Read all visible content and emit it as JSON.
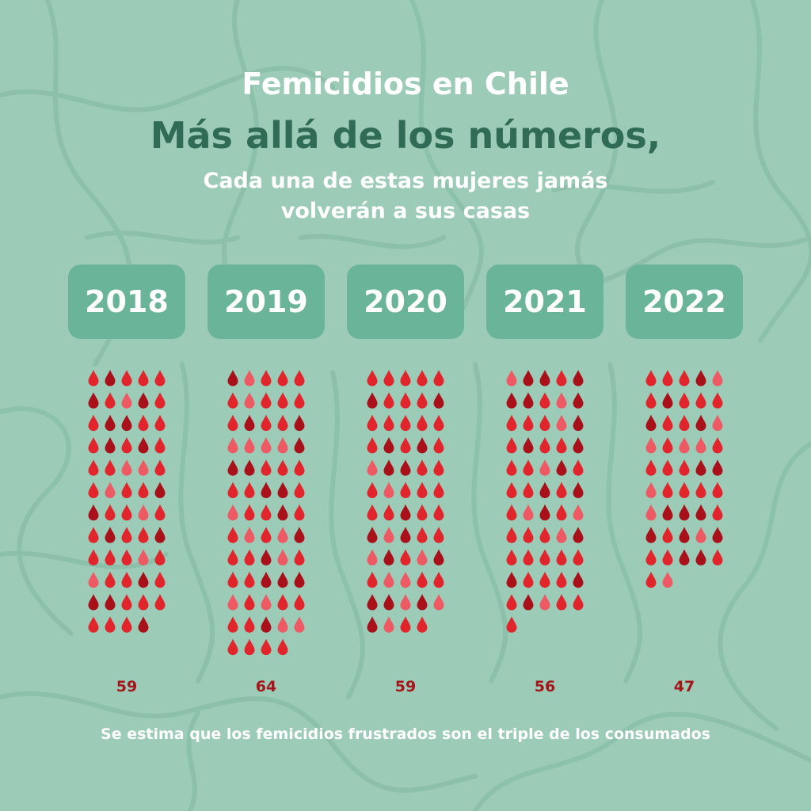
{
  "title": "Femicidios en Chile",
  "headline": "Más allá de los números,",
  "subtitle": "Cada una de estas mujeres jamás volverán a sus casas",
  "footnote": "Se estima que los femicidios frustrados son el triple de los consumados",
  "colors": {
    "background": "#9ccbb8",
    "year_box": "#6ab59a",
    "headline": "#2f6b55",
    "count": "#a4161a",
    "drop_shades": [
      "#e0262c",
      "#a8101a",
      "#ee5a64"
    ]
  },
  "icon": "blood-drop-icon",
  "chart_data": {
    "type": "pictogram",
    "categories": [
      "2018",
      "2019",
      "2020",
      "2021",
      "2022"
    ],
    "values": [
      59,
      64,
      59,
      56,
      47
    ],
    "value_labels": [
      "59",
      "64",
      "59",
      "56",
      "47"
    ],
    "icons_per_row": 5
  }
}
